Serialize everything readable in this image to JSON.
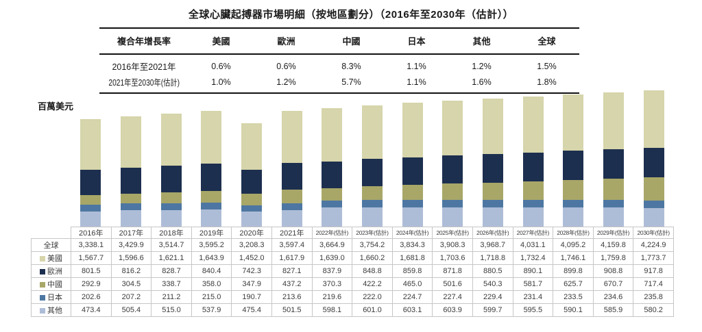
{
  "title": "全球心臟起搏器市場明細（按地區劃分）（2016年至2030年（估計））",
  "cagr_table": {
    "headers": [
      "複合年增長率",
      "美國",
      "歐洲",
      "中國",
      "日本",
      "其他",
      "全球"
    ],
    "rows": [
      {
        "label": "2016年至2021年",
        "values": [
          "0.6%",
          "0.6%",
          "8.3%",
          "1.1%",
          "1.2%",
          "1.5%"
        ]
      },
      {
        "label": "2021年至2030年(估計)",
        "values": [
          "1.0%",
          "1.2%",
          "5.7%",
          "1.1%",
          "1.6%",
          "1.8%"
        ]
      }
    ]
  },
  "chart_data": {
    "type": "bar",
    "stacked": true,
    "title": "全球心臟起搏器市場明細（按地區劃分）（2016年至2030年（估計））",
    "unit_label": "百萬美元",
    "ylabel": "百萬美元",
    "xlabel": "",
    "ylim": [
      0,
      4224.9
    ],
    "ymax": 4224.9,
    "grid": false,
    "legend_position": "table-left",
    "categories": [
      "2016年",
      "2017年",
      "2018年",
      "2019年",
      "2020年",
      "2021年",
      "2022年(估計)",
      "2023年(估計)",
      "2024年(估計)",
      "2025年(估計)",
      "2026年(估計)",
      "2027年(估計)",
      "2028年(估計)",
      "2029年(估計)",
      "2030年(估計)"
    ],
    "total_label": "全球",
    "totals": [
      3338.1,
      3429.9,
      3514.7,
      3595.2,
      3208.3,
      3597.4,
      3664.9,
      3754.2,
      3834.3,
      3908.3,
      3968.7,
      4031.1,
      4095.2,
      4159.8,
      4224.9
    ],
    "series": [
      {
        "name": "美國",
        "color": "#d6d5ab",
        "values": [
          1567.7,
          1596.6,
          1621.1,
          1643.9,
          1452.0,
          1617.9,
          1639.0,
          1660.2,
          1681.8,
          1703.6,
          1718.8,
          1732.4,
          1746.1,
          1759.8,
          1773.7
        ]
      },
      {
        "name": "歐洲",
        "color": "#1d2f4f",
        "values": [
          801.5,
          816.2,
          828.7,
          840.4,
          742.3,
          827.1,
          837.9,
          848.8,
          859.8,
          871.8,
          880.5,
          890.1,
          899.8,
          908.8,
          917.8
        ]
      },
      {
        "name": "中國",
        "color": "#a8a768",
        "values": [
          292.9,
          304.5,
          338.7,
          358.0,
          347.9,
          437.2,
          370.3,
          422.2,
          465.0,
          501.6,
          540.3,
          581.7,
          625.7,
          670.7,
          717.4
        ]
      },
      {
        "name": "日本",
        "color": "#4d77a2",
        "values": [
          202.6,
          207.2,
          211.2,
          215.0,
          190.7,
          213.6,
          219.6,
          222.0,
          224.7,
          227.4,
          229.4,
          231.4,
          233.5,
          234.6,
          235.8
        ]
      },
      {
        "name": "其他",
        "color": "#aebdd7",
        "values": [
          473.4,
          505.4,
          515.0,
          537.9,
          475.4,
          501.5,
          598.1,
          601.0,
          603.1,
          603.9,
          599.7,
          595.5,
          590.1,
          585.9,
          580.2
        ]
      }
    ],
    "stacking_order_bottom_to_top": [
      "其他",
      "日本",
      "中國",
      "歐洲",
      "美國"
    ]
  }
}
